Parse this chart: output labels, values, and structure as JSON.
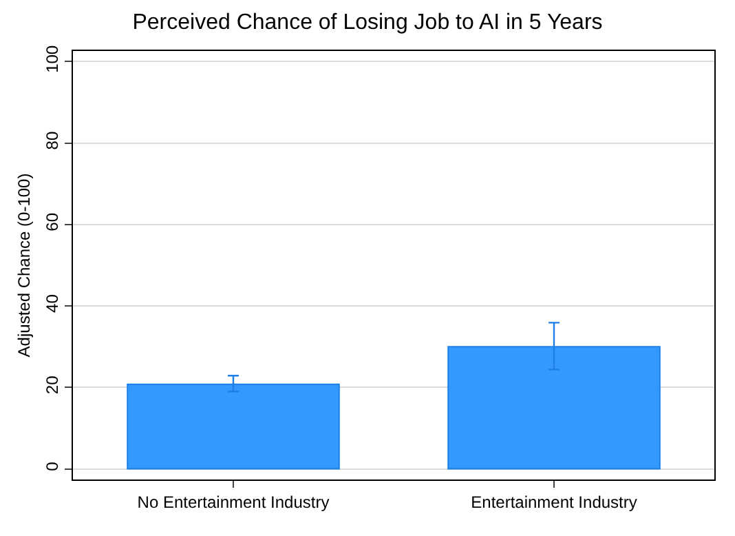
{
  "chart_data": {
    "type": "bar",
    "title": "Perceived Chance of Losing Job to AI in 5 Years",
    "ylabel": "Adjusted Chance (0-100)",
    "categories": [
      "No Entertainment Industry",
      "Entertainment Industry"
    ],
    "values": [
      20.8,
      30.0
    ],
    "color": "#3399ff",
    "errors": [
      [
        19.0,
        22.9
      ],
      [
        24.4,
        35.9
      ]
    ],
    "ylim": [
      -2.6,
      102.6
    ],
    "yticks": [
      0,
      20,
      40,
      60,
      80,
      100
    ],
    "grid": "y"
  }
}
